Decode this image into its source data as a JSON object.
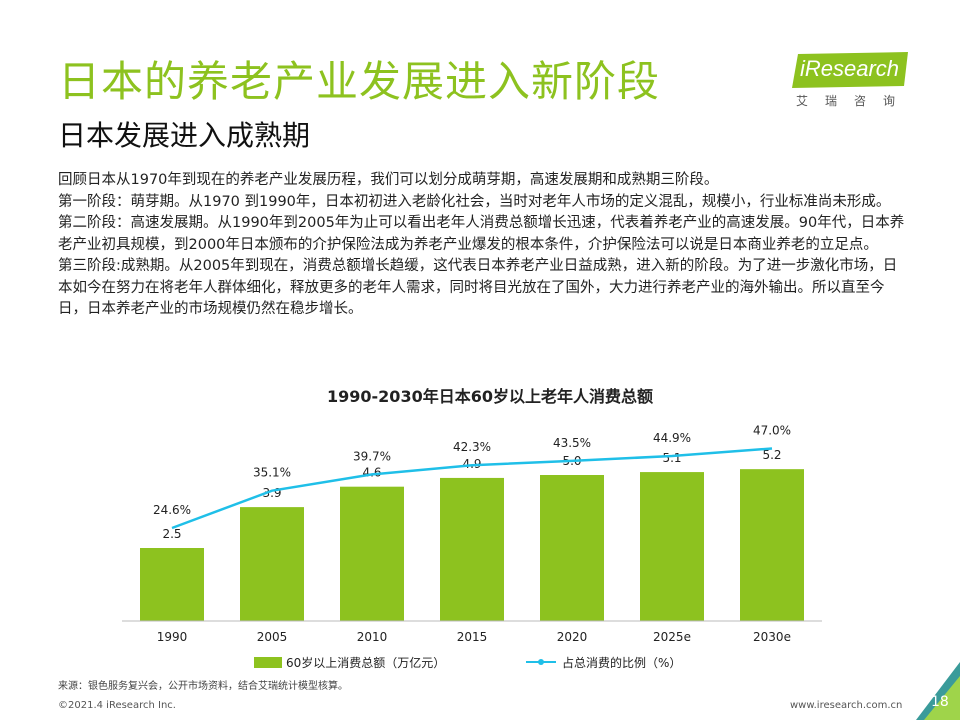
{
  "header": {
    "title": "日本的养老产业发展进入新阶段",
    "subtitle": "日本发展进入成熟期"
  },
  "logo": {
    "name": "iResearch",
    "sub": "艾瑞咨询"
  },
  "body": {
    "paragraphs": [
      "回顾日本从1970年到现在的养老产业发展历程，我们可以划分成萌芽期，高速发展期和成熟期三阶段。",
      "第一阶段：萌芽期。从1970 到1990年，日本初初进入老龄化社会，当时对老年人市场的定义混乱，规模小，行业标准尚未形成。",
      "第二阶段：高速发展期。从1990年到2005年为止可以看出老年人消费总额增长迅速，代表着养老产业的高速发展。90年代，日本养老产业初具规模，到2000年日本颁布的介护保险法成为养老产业爆发的根本条件，介护保险法可以说是日本商业养老的立足点。",
      "第三阶段:成熟期。从2005年到现在，消费总额增长趋缓，这代表日本养老产业日益成熟，进入新的阶段。为了进一步激化市场，日本如今在努力在将老年人群体细化，释放更多的老年人需求，同时将目光放在了国外，大力进行养老产业的海外输出。所以直至今日，日本养老产业的市场规模仍然在稳步增长。"
    ]
  },
  "chart_data": {
    "type": "bar",
    "title": "1990-2030年日本60岁以上老年人消费总额",
    "categories": [
      "1990",
      "2005",
      "2010",
      "2015",
      "2020",
      "2025e",
      "2030e"
    ],
    "series": [
      {
        "name": "60岁以上消费总额（万亿元）",
        "type": "bar",
        "color": "#8dc21f",
        "values": [
          2.5,
          3.9,
          4.6,
          4.9,
          5.0,
          5.1,
          5.2
        ],
        "labels": [
          "2.5",
          "3.9",
          "4.6",
          "4.9",
          "5.0",
          "5.1",
          "5.2"
        ]
      },
      {
        "name": "占总消费的比例（%）",
        "type": "line",
        "color": "#1fbfe8",
        "values": [
          24.6,
          35.1,
          39.7,
          42.3,
          43.5,
          44.9,
          47.0
        ],
        "labels": [
          "24.6%",
          "35.1%",
          "39.7%",
          "42.3%",
          "43.5%",
          "44.9%",
          "47.0%"
        ]
      }
    ],
    "legend_position": "bottom",
    "grid": false
  },
  "footer": {
    "source": "来源：银色服务复兴会，公开市场资料，结合艾瑞统计模型核算。",
    "copyright": "©2021.4 iResearch Inc.",
    "website": "www.iresearch.com.cn",
    "page_number": "18"
  },
  "colors": {
    "accent_green": "#8dc21f",
    "line_blue": "#1fbfe8",
    "corner_dark": "#3a9b9a",
    "corner_light": "#9fd44a"
  }
}
